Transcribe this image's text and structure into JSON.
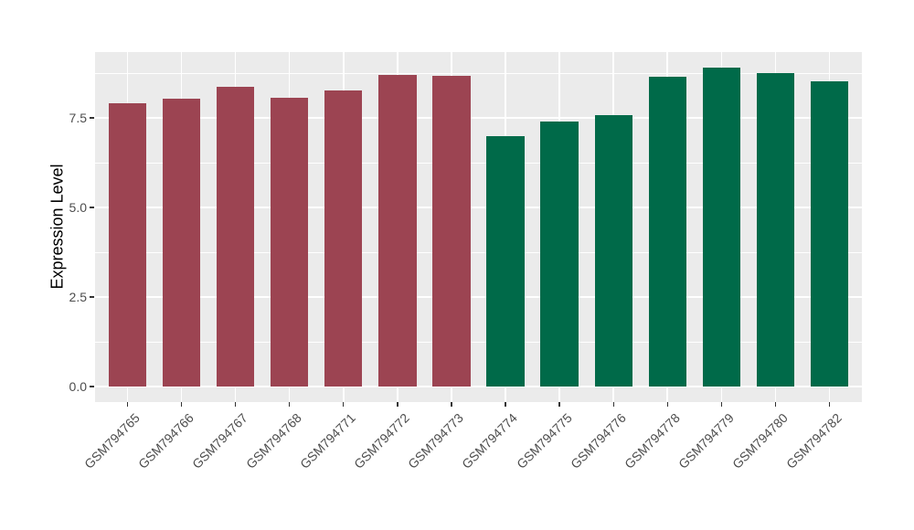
{
  "chart_data": {
    "type": "bar",
    "title": "",
    "xlabel": "",
    "ylabel": "Expression Level",
    "categories": [
      "GSM794765",
      "GSM794766",
      "GSM794767",
      "GSM794768",
      "GSM794771",
      "GSM794772",
      "GSM794773",
      "GSM794774",
      "GSM794775",
      "GSM794776",
      "GSM794778",
      "GSM794779",
      "GSM794780",
      "GSM794782"
    ],
    "values": [
      7.92,
      8.05,
      8.38,
      8.07,
      8.27,
      8.7,
      8.68,
      7.0,
      7.4,
      7.58,
      8.64,
      8.91,
      8.76,
      8.53
    ],
    "bar_colors": [
      "#9C4452",
      "#9C4452",
      "#9C4452",
      "#9C4452",
      "#9C4452",
      "#9C4452",
      "#9C4452",
      "#006A49",
      "#006A49",
      "#006A49",
      "#006A49",
      "#006A49",
      "#006A49",
      "#006A49"
    ],
    "group_colors": {
      "left_group": "#9C4452",
      "right_group": "#006A49"
    },
    "yticks": {
      "labels": [
        "0.0",
        "2.5",
        "5.0",
        "7.5"
      ],
      "values": [
        0,
        2.5,
        5.0,
        7.5
      ]
    },
    "minor_gridlines": [
      1.25,
      3.75,
      6.25,
      8.75
    ],
    "ylim": [
      -0.43,
      9.34
    ],
    "grid": true,
    "legend": "none",
    "x_label_angle": -45,
    "bar_width_ratio": 0.7,
    "x_expand": 0.6,
    "panel_background": "#EBEBEB",
    "gridline_color": "#FFFFFF",
    "axis_text_color": "#4D4D4D",
    "axis_title_color": "#000000",
    "tick_mark_color": "#333333",
    "figure_background": "#FFFFFF"
  }
}
